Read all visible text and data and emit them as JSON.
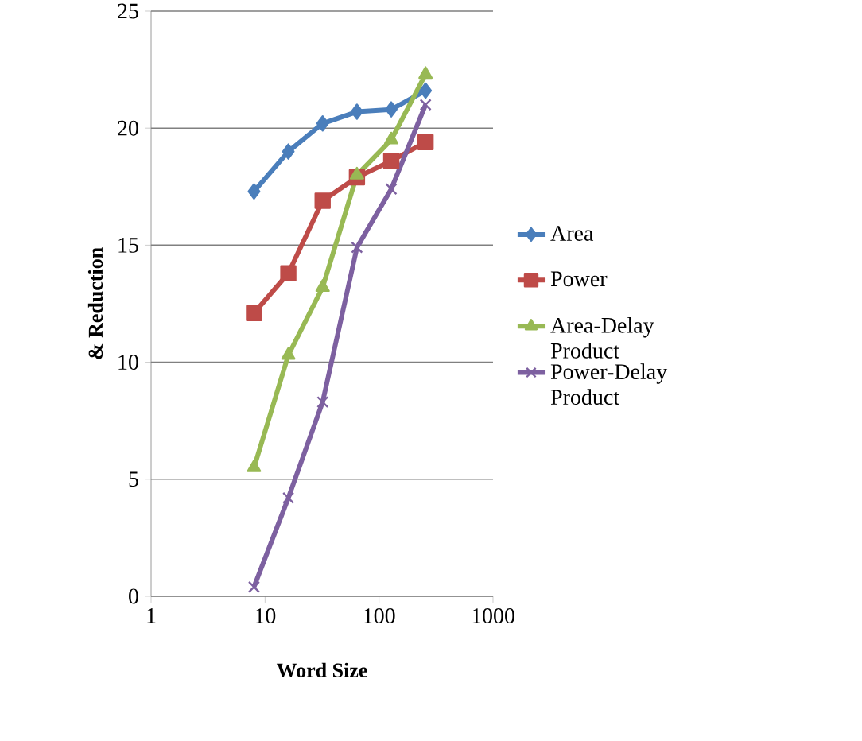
{
  "chart_data": {
    "type": "line",
    "xlabel": "Word Size",
    "ylabel": "& Reduction",
    "x": [
      8,
      16,
      32,
      64,
      128,
      256
    ],
    "log": "x",
    "xlim": [
      1,
      1000
    ],
    "xticks": [
      1,
      10,
      100,
      1000
    ],
    "ylim": [
      0,
      25
    ],
    "yticks": [
      0,
      5,
      10,
      15,
      20,
      25
    ],
    "grid": "y",
    "legend": "right",
    "series": [
      {
        "name": "Area",
        "color": "#4a7ebb",
        "marker": "diamond",
        "values": [
          17.3,
          19.0,
          20.2,
          20.7,
          20.8,
          21.6
        ]
      },
      {
        "name": "Power",
        "color": "#be4b48",
        "marker": "square",
        "values": [
          12.1,
          13.8,
          16.9,
          17.9,
          18.6,
          19.4
        ]
      },
      {
        "name": "Area-Delay Product",
        "color": "#98b954",
        "marker": "triangle",
        "values": [
          5.5,
          10.3,
          13.2,
          18.0,
          19.5,
          22.3
        ]
      },
      {
        "name": "Power-Delay Product",
        "color": "#7d60a0",
        "marker": "cross",
        "values": [
          0.4,
          4.2,
          8.3,
          14.9,
          17.4,
          21.0
        ]
      }
    ]
  }
}
